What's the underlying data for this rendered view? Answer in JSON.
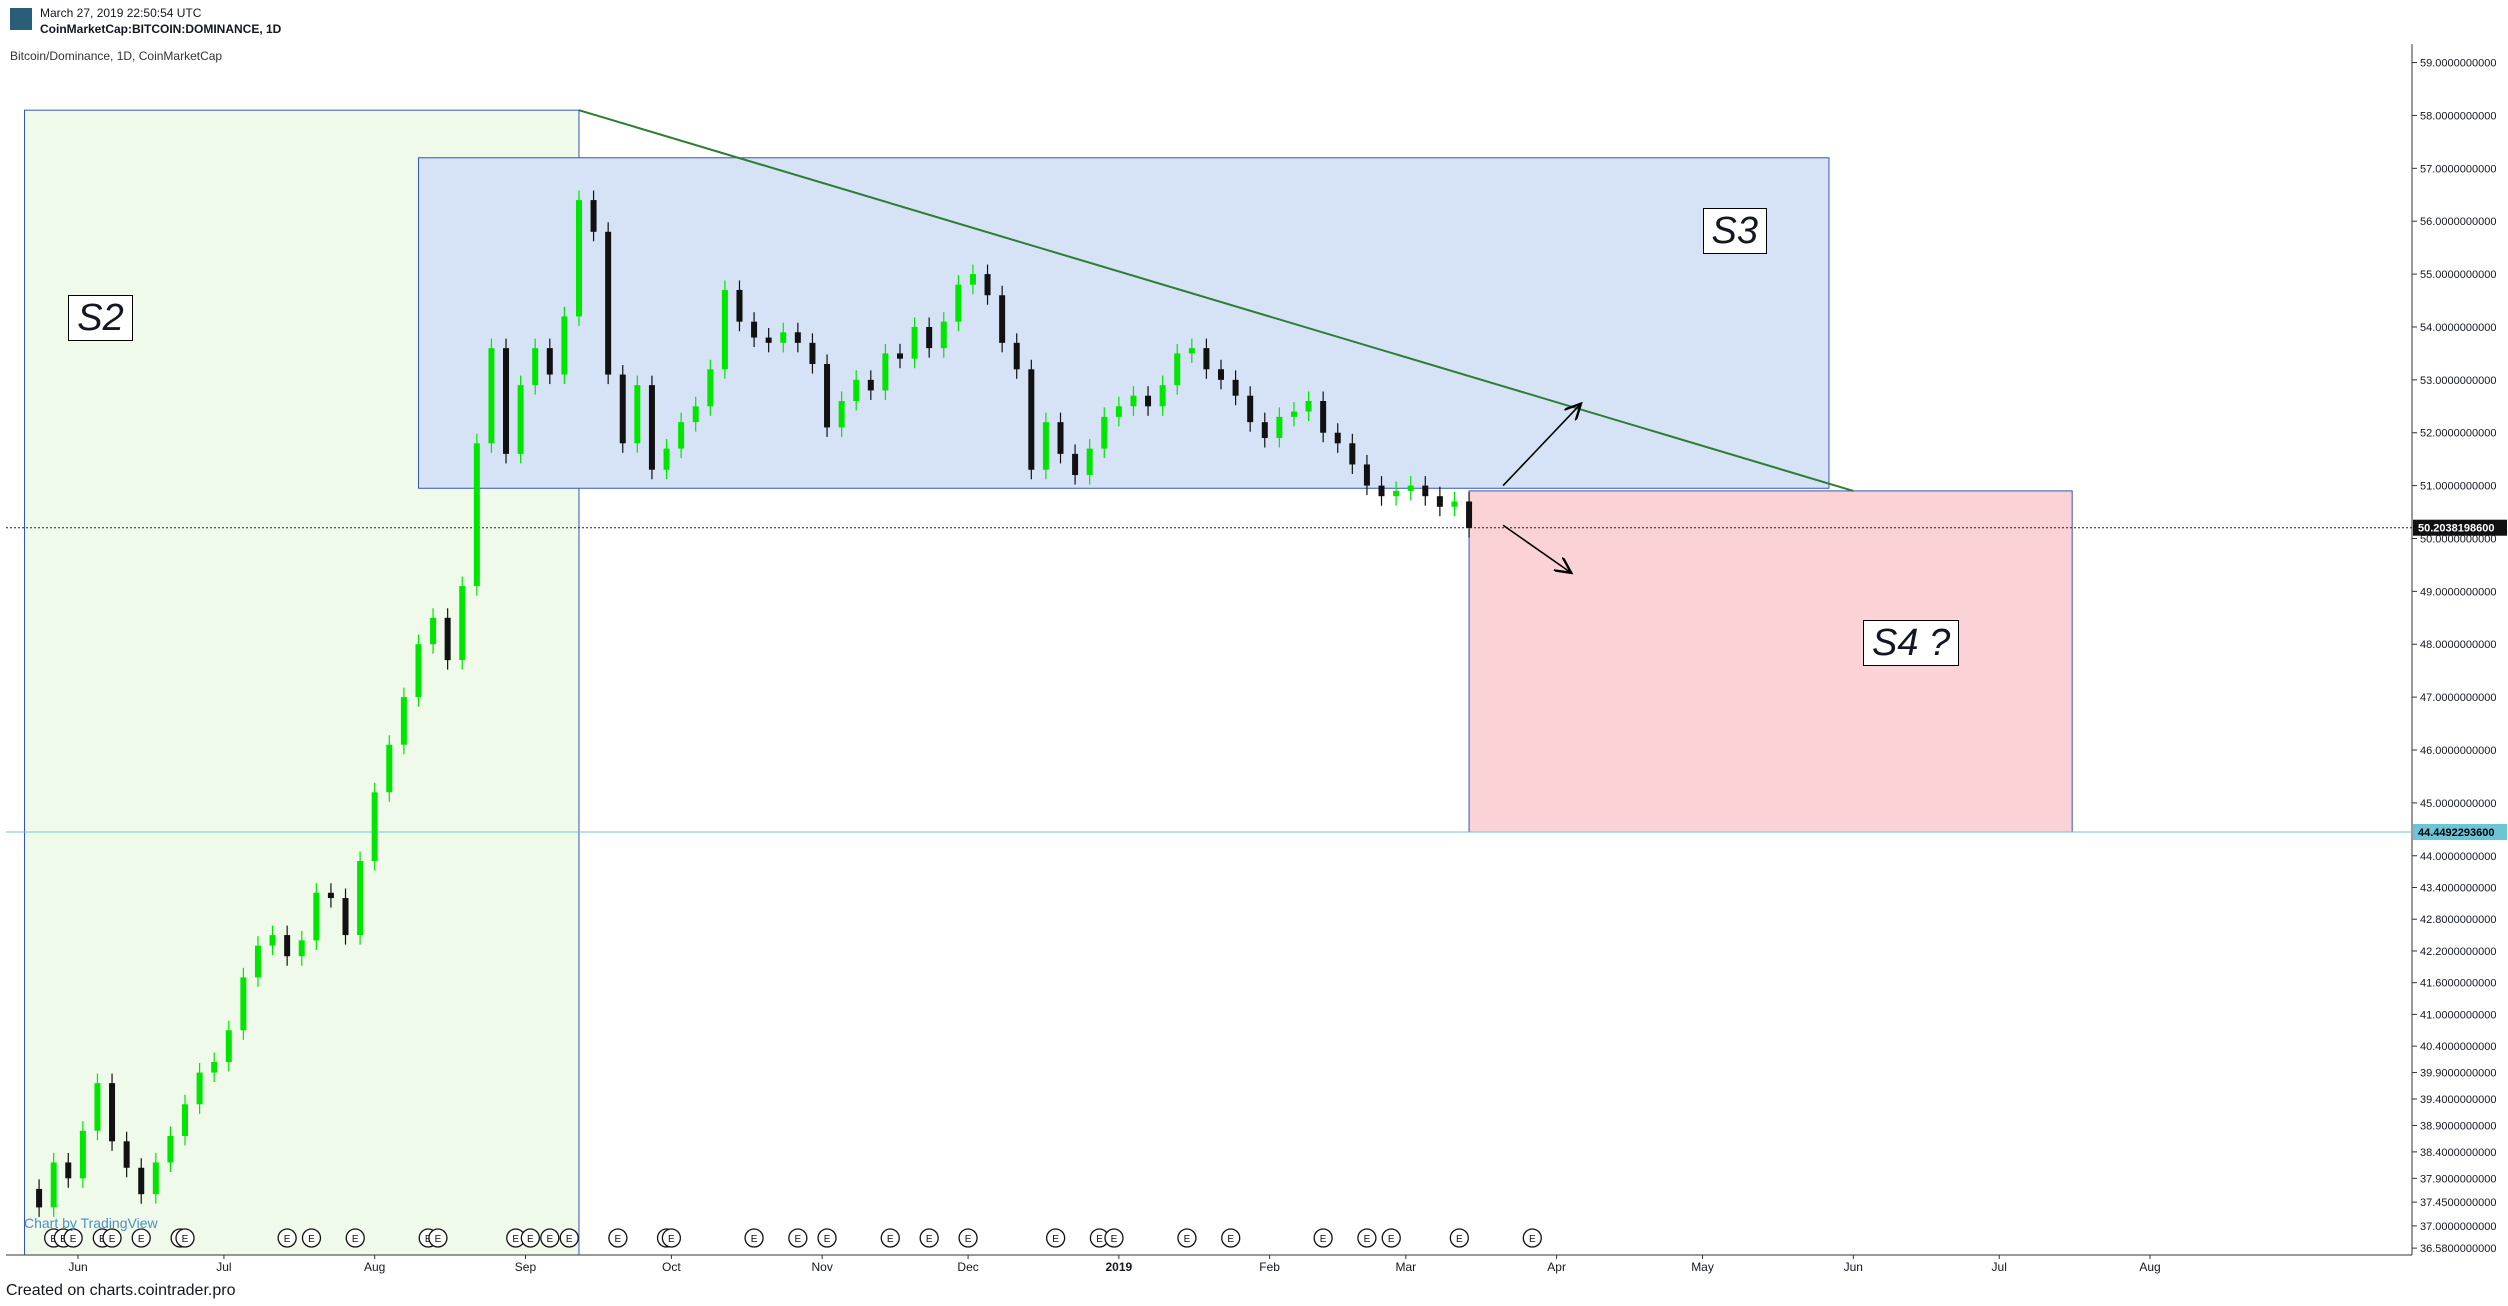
{
  "header": {
    "date": "March 27, 2019 22:50:54 UTC",
    "symbol": "CoinMarketCap:BITCOIN:DOMINANCE, 1D"
  },
  "chart_title": "Bitcoin/Dominance, 1D, CoinMarketCap",
  "footer": "Created on charts.cointrader.pro",
  "watermark": "Chart by TradingView",
  "colors": {
    "up": "#00e600",
    "down": "#111111",
    "zone_s2": "#f0faea",
    "zone_s3": "#d6e3f7",
    "zone_s4": "#fbd3d6",
    "trendline": "#2e7d32",
    "box_border": "#3455b8",
    "price_line": "#6cc4d8"
  },
  "labels": {
    "s2": "S2",
    "s3": "S3",
    "s4": "S4  ?"
  },
  "chart_data": {
    "type": "candlestick",
    "x_labels": [
      "Jun",
      "Jul",
      "Aug",
      "Sep",
      "Oct",
      "Nov",
      "Dec",
      "2019",
      "Feb",
      "Mar",
      "Apr",
      "May",
      "Jun",
      "Jul",
      "Aug"
    ],
    "x_label_dates": [
      "2018-06-01",
      "2018-07-01",
      "2018-08-01",
      "2018-09-01",
      "2018-10-01",
      "2018-11-01",
      "2018-12-01",
      "2019-01-01",
      "2019-02-01",
      "2019-03-01",
      "2019-04-01",
      "2019-05-01",
      "2019-06-01",
      "2019-07-01",
      "2019-08-01"
    ],
    "y_ticks": [
      "59.0000000000",
      "58.0000000000",
      "57.0000000000",
      "56.0000000000",
      "55.0000000000",
      "54.0000000000",
      "53.0000000000",
      "52.0000000000",
      "51.0000000000",
      "50.0000000000",
      "49.0000000000",
      "48.0000000000",
      "47.0000000000",
      "46.0000000000",
      "45.0000000000",
      "44.0000000000",
      "43.4000000000",
      "42.8000000000",
      "42.2000000000",
      "41.6000000000",
      "41.0000000000",
      "40.4000000000",
      "39.9000000000",
      "39.4000000000",
      "38.9000000000",
      "38.4000000000",
      "37.9000000000",
      "37.4500000000",
      "37.0000000000",
      "36.5800000000"
    ],
    "ylim": [
      36.45,
      59.2
    ],
    "current_price_label": "50.2038198600",
    "current_price": 50.2038,
    "target_price_label": "44.4492293600",
    "target_price": 44.4492,
    "earnings_marker": "E",
    "earnings_dates": [
      "2018-05-27",
      "2018-05-29",
      "2018-05-31",
      "2018-06-06",
      "2018-06-08",
      "2018-06-14",
      "2018-06-22",
      "2018-06-23",
      "2018-07-14",
      "2018-07-19",
      "2018-07-28",
      "2018-08-12",
      "2018-08-14",
      "2018-08-30",
      "2018-09-02",
      "2018-09-06",
      "2018-09-10",
      "2018-09-20",
      "2018-09-30",
      "2018-10-01",
      "2018-10-18",
      "2018-10-27",
      "2018-11-02",
      "2018-11-15",
      "2018-11-23",
      "2018-12-01",
      "2018-12-19",
      "2018-12-28",
      "2018-12-31",
      "2019-01-15",
      "2019-01-24",
      "2019-02-12",
      "2019-02-21",
      "2019-02-26",
      "2019-03-12",
      "2019-03-27"
    ],
    "zones": {
      "s2": {
        "x0": "2018-05-21",
        "x1": "2018-09-12",
        "y0": 36.45,
        "y1": 58.1
      },
      "s3": {
        "x0": "2018-08-10",
        "x1": "2019-05-27",
        "y0": 50.95,
        "y1": 57.2
      },
      "s4": {
        "x0": "2019-03-14",
        "x1": "2019-07-16",
        "y0": 44.449,
        "y1": 50.9
      }
    },
    "trendline": {
      "x0": "2018-09-12",
      "y0": 58.1,
      "x1": "2019-06-01",
      "y1": 50.9
    },
    "arrows": [
      {
        "x0": "2019-03-21",
        "y0": 51.0,
        "x1": "2019-04-06",
        "y1": 52.55
      },
      {
        "x0": "2019-03-21",
        "y0": 50.25,
        "x1": "2019-04-04",
        "y1": 49.35
      }
    ],
    "series": [
      {
        "points": [
          [
            "2018-05-21",
            37.7
          ],
          [
            "2018-05-24",
            37.35
          ],
          [
            "2018-05-27",
            38.2
          ],
          [
            "2018-05-30",
            37.9
          ],
          [
            "2018-06-02",
            38.8
          ],
          [
            "2018-06-05",
            39.7
          ],
          [
            "2018-06-08",
            38.6
          ],
          [
            "2018-06-11",
            38.1
          ],
          [
            "2018-06-14",
            37.6
          ],
          [
            "2018-06-17",
            38.2
          ],
          [
            "2018-06-20",
            38.7
          ],
          [
            "2018-06-23",
            39.3
          ],
          [
            "2018-06-26",
            39.9
          ],
          [
            "2018-06-29",
            40.1
          ],
          [
            "2018-07-02",
            40.7
          ],
          [
            "2018-07-05",
            41.7
          ],
          [
            "2018-07-08",
            42.3
          ],
          [
            "2018-07-11",
            42.5
          ],
          [
            "2018-07-14",
            42.1
          ],
          [
            "2018-07-17",
            42.4
          ],
          [
            "2018-07-20",
            43.3
          ],
          [
            "2018-07-23",
            43.2
          ],
          [
            "2018-07-26",
            42.5
          ],
          [
            "2018-07-29",
            43.9
          ],
          [
            "2018-08-01",
            45.2
          ],
          [
            "2018-08-04",
            46.1
          ],
          [
            "2018-08-07",
            47.0
          ],
          [
            "2018-08-10",
            48.0
          ],
          [
            "2018-08-13",
            48.5
          ],
          [
            "2018-08-16",
            47.7
          ],
          [
            "2018-08-19",
            49.1
          ],
          [
            "2018-08-22",
            51.8
          ],
          [
            "2018-08-25",
            53.6
          ],
          [
            "2018-08-28",
            51.6
          ],
          [
            "2018-08-31",
            52.9
          ],
          [
            "2018-09-03",
            53.6
          ],
          [
            "2018-09-06",
            53.1
          ],
          [
            "2018-09-09",
            54.2
          ],
          [
            "2018-09-12",
            56.4
          ],
          [
            "2018-09-15",
            55.8
          ],
          [
            "2018-09-18",
            53.1
          ],
          [
            "2018-09-21",
            51.8
          ],
          [
            "2018-09-24",
            52.9
          ],
          [
            "2018-09-27",
            51.3
          ],
          [
            "2018-09-30",
            51.7
          ],
          [
            "2018-10-03",
            52.2
          ],
          [
            "2018-10-06",
            52.5
          ],
          [
            "2018-10-09",
            53.2
          ],
          [
            "2018-10-12",
            54.7
          ],
          [
            "2018-10-15",
            54.1
          ],
          [
            "2018-10-18",
            53.8
          ],
          [
            "2018-10-21",
            53.7
          ],
          [
            "2018-10-24",
            53.9
          ],
          [
            "2018-10-27",
            53.7
          ],
          [
            "2018-10-30",
            53.3
          ],
          [
            "2018-11-02",
            52.1
          ],
          [
            "2018-11-05",
            52.6
          ],
          [
            "2018-11-08",
            53.0
          ],
          [
            "2018-11-11",
            52.8
          ],
          [
            "2018-11-14",
            53.5
          ],
          [
            "2018-11-17",
            53.4
          ],
          [
            "2018-11-20",
            54.0
          ],
          [
            "2018-11-23",
            53.6
          ],
          [
            "2018-11-26",
            54.1
          ],
          [
            "2018-11-29",
            54.8
          ],
          [
            "2018-12-02",
            55.0
          ],
          [
            "2018-12-05",
            54.6
          ],
          [
            "2018-12-08",
            53.7
          ],
          [
            "2018-12-11",
            53.2
          ],
          [
            "2018-12-14",
            51.3
          ],
          [
            "2018-12-17",
            52.2
          ],
          [
            "2018-12-20",
            51.6
          ],
          [
            "2018-12-23",
            51.2
          ],
          [
            "2018-12-26",
            51.7
          ],
          [
            "2018-12-29",
            52.3
          ],
          [
            "2019-01-01",
            52.5
          ],
          [
            "2019-01-04",
            52.7
          ],
          [
            "2019-01-07",
            52.5
          ],
          [
            "2019-01-10",
            52.9
          ],
          [
            "2019-01-13",
            53.5
          ],
          [
            "2019-01-16",
            53.6
          ],
          [
            "2019-01-19",
            53.2
          ],
          [
            "2019-01-22",
            53.0
          ],
          [
            "2019-01-25",
            52.7
          ],
          [
            "2019-01-28",
            52.2
          ],
          [
            "2019-01-31",
            51.9
          ],
          [
            "2019-02-03",
            52.3
          ],
          [
            "2019-02-06",
            52.4
          ],
          [
            "2019-02-09",
            52.6
          ],
          [
            "2019-02-12",
            52.0
          ],
          [
            "2019-02-15",
            51.8
          ],
          [
            "2019-02-18",
            51.4
          ],
          [
            "2019-02-21",
            51.0
          ],
          [
            "2019-02-24",
            50.8
          ],
          [
            "2019-02-27",
            50.9
          ],
          [
            "2019-03-02",
            51.0
          ],
          [
            "2019-03-05",
            50.8
          ],
          [
            "2019-03-08",
            50.6
          ],
          [
            "2019-03-11",
            50.7
          ],
          [
            "2019-03-14",
            50.2
          ]
        ]
      }
    ]
  }
}
